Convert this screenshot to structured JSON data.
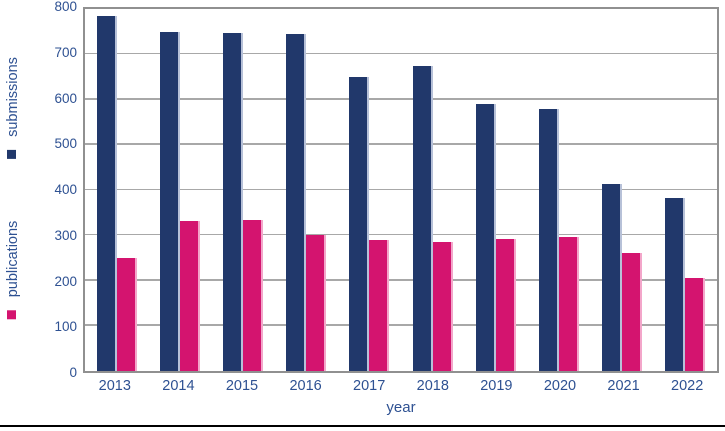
{
  "chart_data": {
    "type": "bar",
    "title": "",
    "categories": [
      "2013",
      "2014",
      "2015",
      "2016",
      "2017",
      "2018",
      "2019",
      "2020",
      "2021",
      "2022"
    ],
    "series": [
      {
        "name": "submissions",
        "color": "#21386b",
        "edge_color": "#b7c1d8",
        "values": [
          784,
          750,
          748,
          744,
          650,
          674,
          590,
          580,
          414,
          383
        ]
      },
      {
        "name": "publications",
        "color": "#d4146f",
        "edge_color": "#f3a6ca",
        "values": [
          250,
          332,
          333,
          300,
          290,
          285,
          292,
          296,
          260,
          206
        ]
      }
    ],
    "xlabel": "year",
    "ylabel": "",
    "ylim": [
      0,
      800
    ],
    "yticks": [
      0,
      100,
      200,
      300,
      400,
      500,
      600,
      700,
      800
    ],
    "grid": true,
    "legend_position": "left-rotated",
    "legend_entries": [
      "submissions",
      "publications"
    ]
  },
  "colors": {
    "bar_submissions": "#21386b",
    "bar_publications": "#d4146f",
    "axis_text": "#2e5192",
    "gridline": "#a8a8a8",
    "plot_border": "#909090",
    "bottom_rule": "#000000"
  }
}
